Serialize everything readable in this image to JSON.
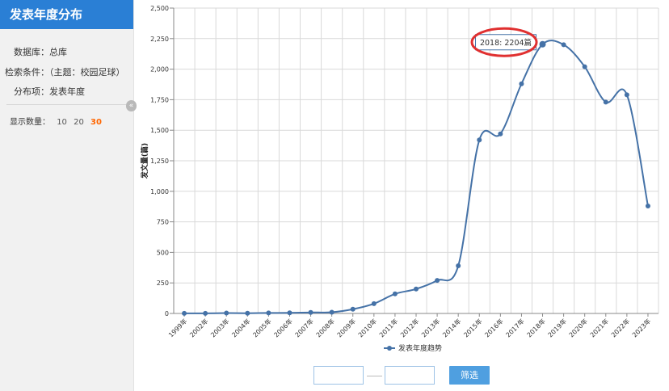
{
  "sidebar": {
    "title": "发表年度分布",
    "database": "数据库：总库",
    "condition": "检索条件：（主题：校园足球）",
    "distribution": "分布项：发表年度",
    "count_label": "显示数量：",
    "count_options": [
      "10",
      "20",
      "30"
    ],
    "count_active": "30",
    "collapse_icon": "«"
  },
  "filter": {
    "from_value": "",
    "to_value": "",
    "button_label": "筛选"
  },
  "chart_data": {
    "type": "line",
    "title": "",
    "xlabel": "",
    "ylabel": "发文量(篇)",
    "ylim": [
      0,
      2500
    ],
    "y_ticks": [
      "0",
      "250",
      "500",
      "750",
      "1,000",
      "1,250",
      "1,500",
      "1,750",
      "2,000",
      "2,250",
      "2,500"
    ],
    "categories": [
      "1999年",
      "2002年",
      "2003年",
      "2004年",
      "2005年",
      "2006年",
      "2007年",
      "2008年",
      "2009年",
      "2010年",
      "2011年",
      "2012年",
      "2013年",
      "2014年",
      "2015年",
      "2016年",
      "2017年",
      "2018年",
      "2019年",
      "2020年",
      "2021年",
      "2022年",
      "2023年"
    ],
    "series": [
      {
        "name": "发表年度趋势",
        "color": "#4572a7",
        "values": [
          1,
          1,
          3,
          2,
          4,
          5,
          8,
          10,
          35,
          80,
          160,
          200,
          270,
          390,
          1420,
          1470,
          1880,
          2204,
          2200,
          2020,
          1730,
          1790,
          880
        ]
      }
    ],
    "grid": true,
    "legend": "bottom-center",
    "tooltip": {
      "text": "2018: 2204篇",
      "index": 17
    },
    "highlight_color": "#e03030"
  }
}
